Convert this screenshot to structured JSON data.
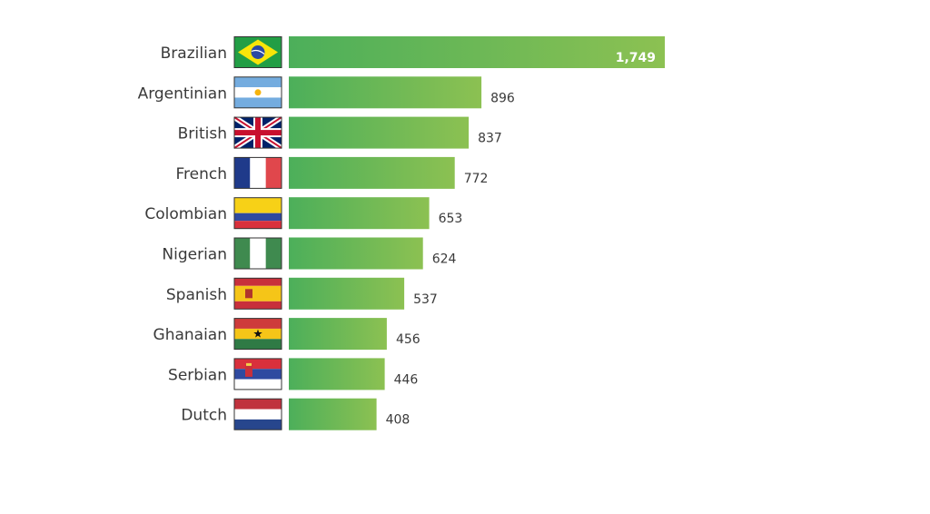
{
  "chart_data": {
    "type": "bar",
    "orientation": "horizontal",
    "title": "",
    "xlabel": "",
    "ylabel": "",
    "xlim": [
      0,
      1749
    ],
    "grid": false,
    "categories": [
      "Brazilian",
      "Argentinian",
      "British",
      "French",
      "Colombian",
      "Nigerian",
      "Spanish",
      "Ghanaian",
      "Serbian",
      "Dutch"
    ],
    "values": [
      1749,
      896,
      837,
      772,
      653,
      624,
      537,
      456,
      446,
      408
    ],
    "value_labels": [
      "1,749",
      "896",
      "837",
      "772",
      "653",
      "624",
      "537",
      "456",
      "446",
      "408"
    ],
    "flag_icons": [
      "brazil-flag-icon",
      "argentina-flag-icon",
      "uk-flag-icon",
      "france-flag-icon",
      "colombia-flag-icon",
      "nigeria-flag-icon",
      "spain-flag-icon",
      "ghana-flag-icon",
      "serbia-flag-icon",
      "netherlands-flag-icon"
    ],
    "colors": {
      "bar_start": "#4caf5a",
      "bar_end": "#8cc152",
      "text": "#3a3a3a",
      "inside_label": "#ffffff"
    }
  }
}
